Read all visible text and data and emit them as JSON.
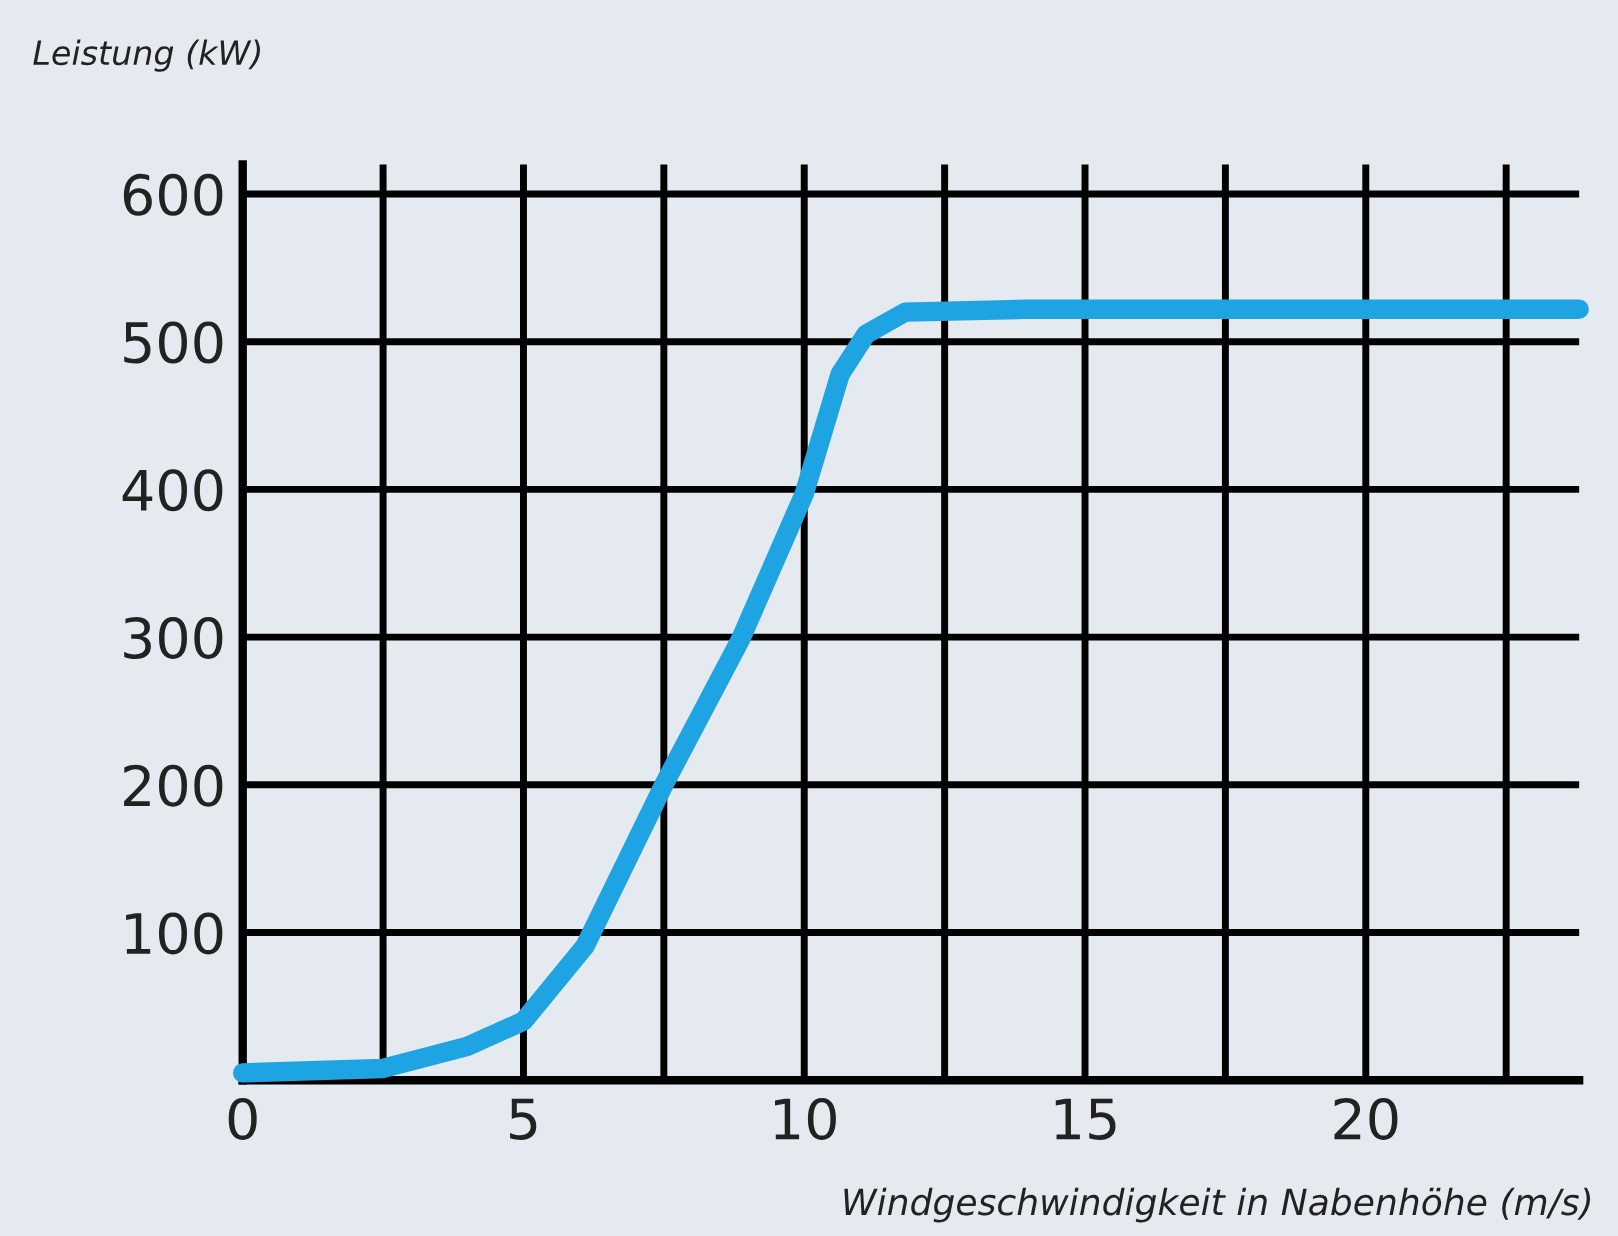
{
  "chart_data": {
    "type": "line",
    "ylabel": "Leistung (kW)",
    "xlabel": "Windgeschwindigkeit in Nabenhöhe (m/s)",
    "series": [
      {
        "color": "#1ea4e2",
        "x": [
          0,
          2.5,
          4.0,
          5.0,
          6.1,
          7.5,
          8.86,
          10.0,
          10.64,
          11.1,
          11.8,
          14,
          18,
          23.8
        ],
        "values": [
          5,
          8,
          23,
          40,
          91,
          200,
          298,
          397,
          478,
          505,
          520,
          522,
          522,
          522
        ]
      }
    ],
    "xlim": [
      0,
      23.8
    ],
    "ylim": [
      0,
      620
    ],
    "xticks": [
      0,
      {
        "value": 2.5,
        "label": null
      },
      5,
      {
        "value": 7.5,
        "label": null
      },
      10,
      {
        "value": 12.5,
        "label": null
      },
      15,
      {
        "value": 17.5,
        "label": null
      },
      20,
      {
        "value": 22.5,
        "label": null
      }
    ],
    "yticks": [
      {
        "value": 0,
        "label": null
      },
      100,
      200,
      300,
      400,
      500,
      600
    ],
    "grid": true
  }
}
